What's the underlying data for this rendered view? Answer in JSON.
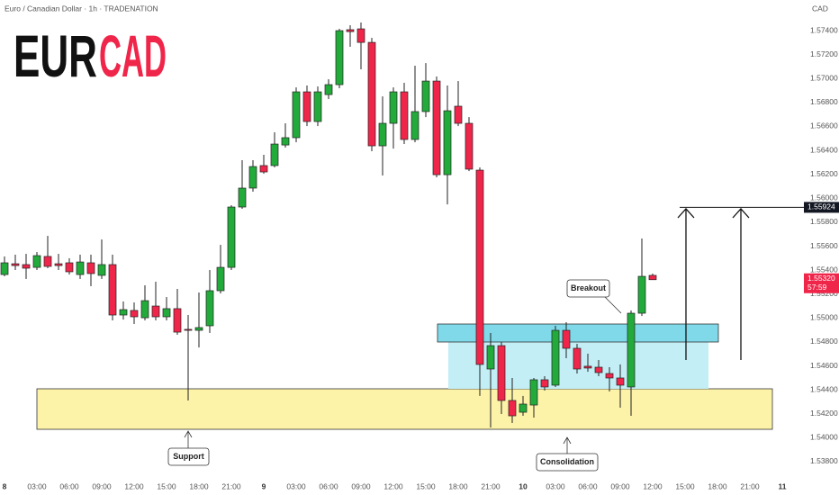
{
  "chart_data": {
    "type": "candlestick",
    "title": [
      "EUR",
      "CAD"
    ],
    "subtitle": "Euro / Canadian Dollar · 1h · TRADENATION",
    "currency": "CAD",
    "up_color": "#22ab3b",
    "down_color": "#f0254a",
    "wick_color": "#222222",
    "x": [
      0,
      1,
      2,
      3,
      4,
      5,
      6,
      7,
      8,
      9,
      10,
      11,
      12,
      13,
      14,
      15,
      16,
      17,
      18,
      19,
      20,
      21,
      22,
      23,
      24,
      25,
      26,
      27,
      28,
      29,
      30,
      31,
      32,
      33,
      34,
      35,
      36,
      37,
      38,
      39,
      40,
      41,
      42,
      43,
      44,
      45,
      46,
      47,
      48,
      49,
      50,
      51,
      52,
      53,
      54,
      55,
      56,
      57,
      58,
      59,
      60
    ],
    "open": [
      1.55363,
      1.55453,
      1.55446,
      1.55423,
      1.55514,
      1.55453,
      1.55461,
      1.55363,
      1.55461,
      1.55356,
      1.55446,
      1.55025,
      1.55063,
      1.55002,
      1.551,
      1.5501,
      1.55078,
      1.54905,
      1.54897,
      1.54935,
      1.55228,
      1.55423,
      1.55927,
      1.56085,
      1.56273,
      1.56273,
      1.56445,
      1.56506,
      1.56889,
      1.56641,
      1.56866,
      1.56949,
      1.57408,
      1.57415,
      1.57302,
      1.56438,
      1.56626,
      1.56889,
      1.56491,
      1.56724,
      1.56979,
      1.56197,
      1.56769,
      1.56626,
      1.56235,
      1.54574,
      1.54769,
      1.54311,
      1.54213,
      1.54273,
      1.54484,
      1.54439,
      1.54897,
      1.54747,
      1.54597,
      1.54589,
      1.54536,
      1.54499,
      1.54424,
      1.5504,
      1.55356
    ],
    "high": [
      1.55514,
      1.55529,
      1.55536,
      1.55551,
      1.55686,
      1.55536,
      1.55499,
      1.55529,
      1.55529,
      1.55656,
      1.55529,
      1.55138,
      1.5513,
      1.55273,
      1.55303,
      1.55175,
      1.55243,
      1.55025,
      1.55213,
      1.55401,
      1.55611,
      1.55942,
      1.56318,
      1.56318,
      1.56363,
      1.56551,
      1.56626,
      1.56926,
      1.56942,
      1.56934,
      1.56994,
      1.57415,
      1.57445,
      1.57468,
      1.5734,
      1.56851,
      1.56926,
      1.56964,
      1.57107,
      1.57129,
      1.57017,
      1.56942,
      1.56979,
      1.56678,
      1.56258,
      1.54875,
      1.54799,
      1.54499,
      1.54349,
      1.54499,
      1.54514,
      1.54935,
      1.54965,
      1.54784,
      1.54702,
      1.54649,
      1.54589,
      1.54612,
      1.55063,
      1.55664,
      1.55371
    ],
    "low": [
      1.55348,
      1.55401,
      1.55326,
      1.55401,
      1.55416,
      1.55401,
      1.55363,
      1.55326,
      1.55266,
      1.55326,
      1.5498,
      1.54987,
      1.5495,
      1.5498,
      1.5498,
      1.5498,
      1.5486,
      1.54311,
      1.54754,
      1.54875,
      1.55205,
      1.55401,
      1.55912,
      1.56055,
      1.56205,
      1.56258,
      1.56423,
      1.56468,
      1.56603,
      1.56603,
      1.56829,
      1.56919,
      1.57265,
      1.57077,
      1.56393,
      1.5619,
      1.56415,
      1.56453,
      1.56468,
      1.56678,
      1.56175,
      1.55949,
      1.56603,
      1.56227,
      1.54349,
      1.54085,
      1.54198,
      1.54123,
      1.54183,
      1.54168,
      1.54394,
      1.54424,
      1.54664,
      1.54536,
      1.54551,
      1.54514,
      1.54386,
      1.54251,
      1.54183,
      1.55017,
      1.55318
    ],
    "close": [
      1.55461,
      1.55438,
      1.55416,
      1.55521,
      1.55431,
      1.55438,
      1.55386,
      1.55468,
      1.55371,
      1.55446,
      1.55025,
      1.5507,
      1.5501,
      1.55145,
      1.5501,
      1.55078,
      1.54882,
      1.54897,
      1.5492,
      1.55228,
      1.55423,
      1.55927,
      1.56085,
      1.56265,
      1.5622,
      1.56453,
      1.56506,
      1.56889,
      1.56641,
      1.56889,
      1.56949,
      1.574,
      1.57392,
      1.57302,
      1.56438,
      1.56626,
      1.56889,
      1.56491,
      1.56724,
      1.56979,
      1.56197,
      1.56731,
      1.56626,
      1.56243,
      1.54612,
      1.54769,
      1.54311,
      1.54183,
      1.54281,
      1.54484,
      1.54424,
      1.54897,
      1.54747,
      1.54574,
      1.54582,
      1.54544,
      1.54499,
      1.54439,
      1.5504,
      1.55348,
      1.5532
    ],
    "xlim": [
      -0.4167,
      72.9167
    ],
    "xticks": [
      {
        "value": 0,
        "label": "8"
      },
      {
        "value": 3,
        "label": "03:00"
      },
      {
        "value": 6,
        "label": "06:00"
      },
      {
        "value": 9,
        "label": "09:00"
      },
      {
        "value": 12,
        "label": "12:00"
      },
      {
        "value": 15,
        "label": "15:00"
      },
      {
        "value": 18,
        "label": "18:00"
      },
      {
        "value": 21,
        "label": "21:00"
      },
      {
        "value": 24,
        "label": "9"
      },
      {
        "value": 27,
        "label": "03:00"
      },
      {
        "value": 30,
        "label": "06:00"
      },
      {
        "value": 33,
        "label": "09:00"
      },
      {
        "value": 36,
        "label": "12:00"
      },
      {
        "value": 39,
        "label": "15:00"
      },
      {
        "value": 42,
        "label": "18:00"
      },
      {
        "value": 45,
        "label": "21:00"
      },
      {
        "value": 48,
        "label": "10"
      },
      {
        "value": 51,
        "label": "03:00"
      },
      {
        "value": 54,
        "label": "06:00"
      },
      {
        "value": 57,
        "label": "09:00"
      },
      {
        "value": 60,
        "label": "12:00"
      },
      {
        "value": 63,
        "label": "15:00"
      },
      {
        "value": 66,
        "label": "18:00"
      },
      {
        "value": 69,
        "label": "21:00"
      },
      {
        "value": 72,
        "label": "11"
      }
    ],
    "ylim": [
      1.53672,
      1.57656
    ],
    "yticks": [
      {
        "value": 1.538,
        "label": "1.53800"
      },
      {
        "value": 1.54,
        "label": "1.54000"
      },
      {
        "value": 1.542,
        "label": "1.54200"
      },
      {
        "value": 1.544,
        "label": "1.54400"
      },
      {
        "value": 1.546,
        "label": "1.54600"
      },
      {
        "value": 1.548,
        "label": "1.54800"
      },
      {
        "value": 1.55,
        "label": "1.55000"
      },
      {
        "value": 1.552,
        "label": "1.55200"
      },
      {
        "value": 1.554,
        "label": "1.55400"
      },
      {
        "value": 1.556,
        "label": "1.55600"
      },
      {
        "value": 1.558,
        "label": "1.55800"
      },
      {
        "value": 1.56,
        "label": "1.56000"
      },
      {
        "value": 1.562,
        "label": "1.56200"
      },
      {
        "value": 1.564,
        "label": "1.56400"
      },
      {
        "value": 1.566,
        "label": "1.56600"
      },
      {
        "value": 1.568,
        "label": "1.56800"
      },
      {
        "value": 1.57,
        "label": "1.57000"
      },
      {
        "value": 1.572,
        "label": "1.57200"
      },
      {
        "value": 1.574,
        "label": "1.57400"
      }
    ],
    "target_line": {
      "value": 1.55924,
      "label": "1.55924"
    },
    "last_price": {
      "value": 1.5532,
      "label": "1.55320"
    },
    "countdown": "57:59",
    "annotations": [
      "Breakout",
      "Support",
      "Consolidation"
    ]
  }
}
